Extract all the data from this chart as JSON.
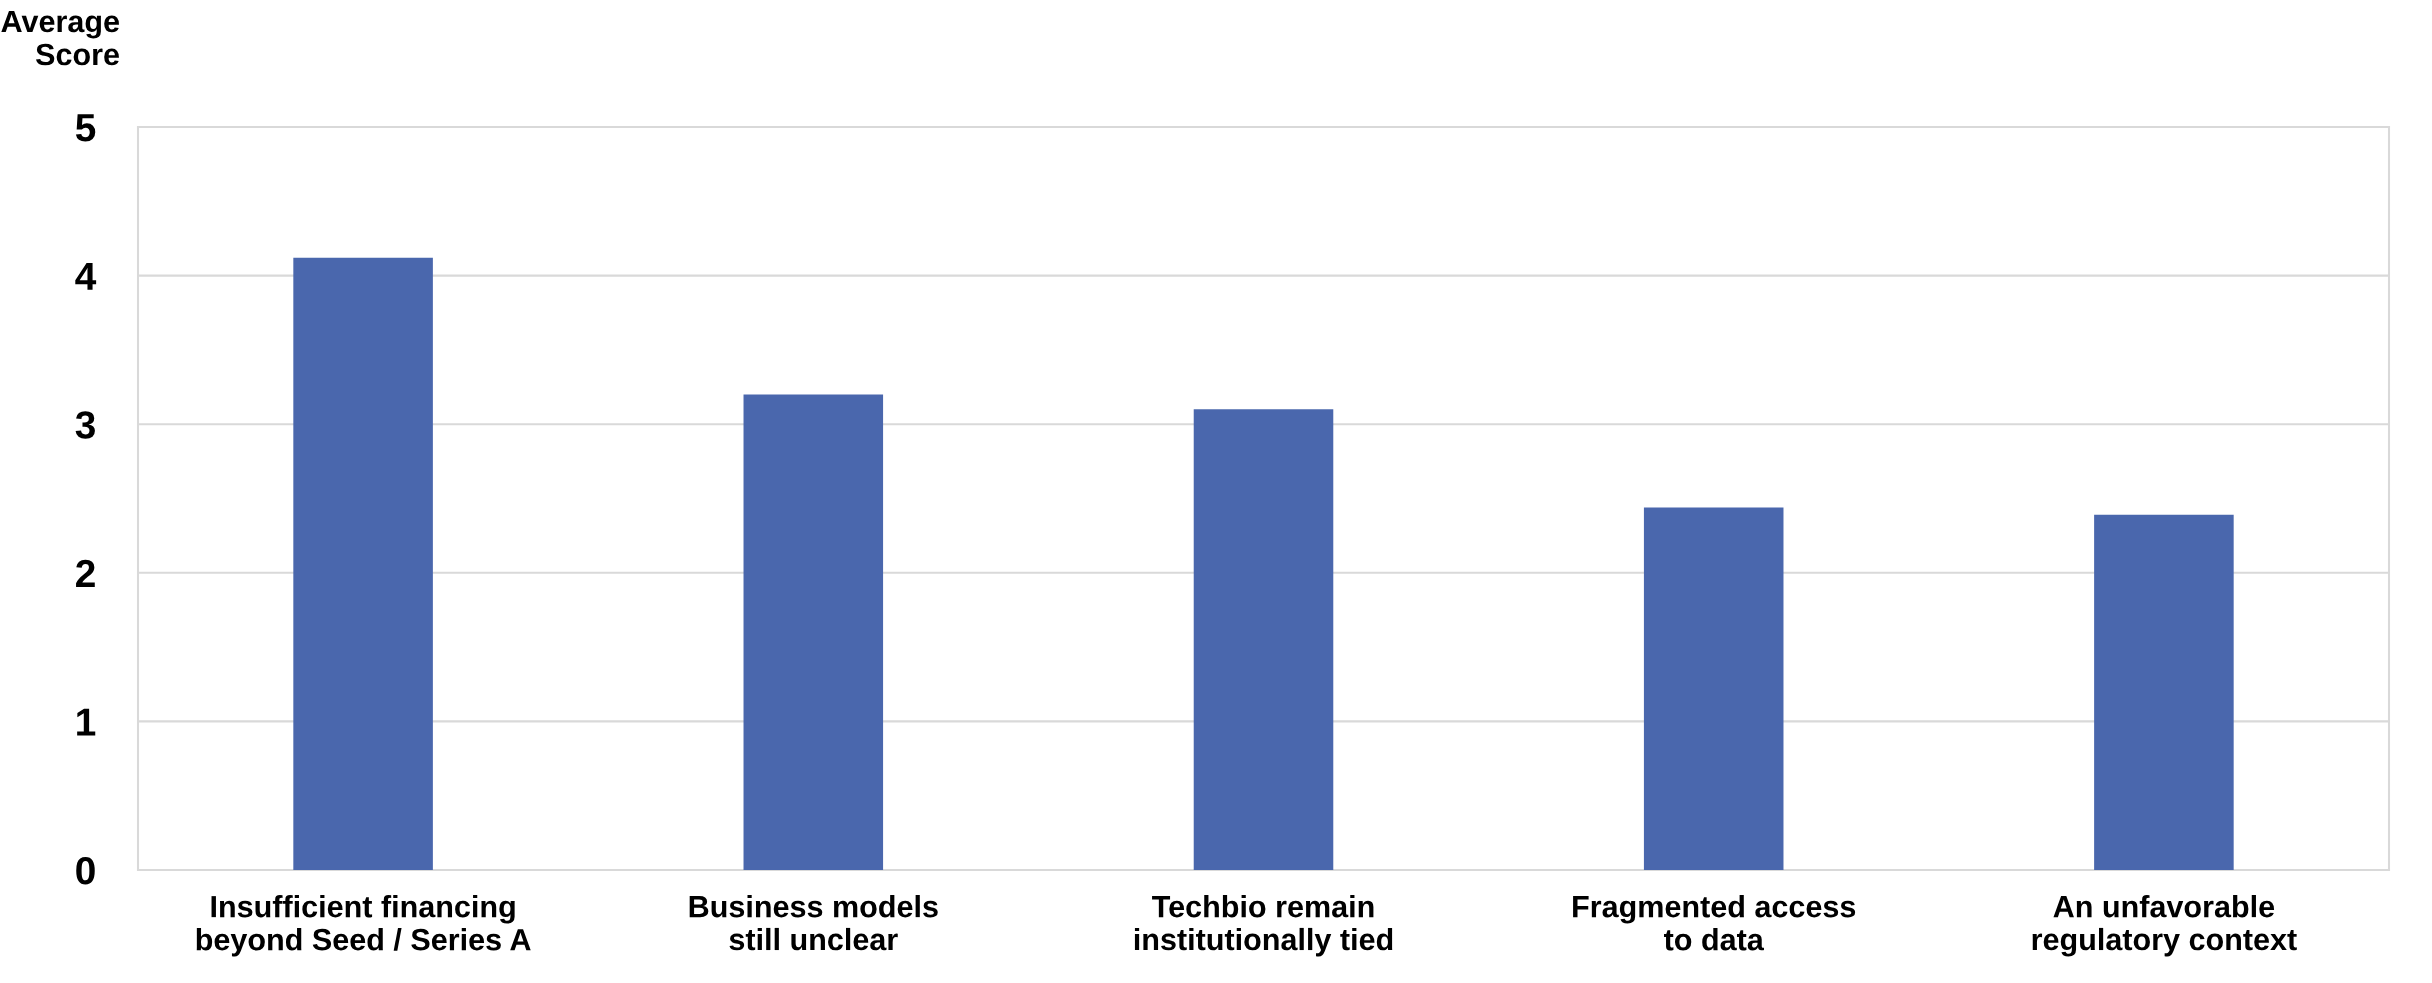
{
  "chart_data": {
    "type": "bar",
    "ylabel": "Average\nScore",
    "categories": [
      "Insufficient financing\nbeyond Seed / Series A",
      "Business models\nstill unclear",
      "Techbio remain\ninstitutionally tied",
      "Fragmented access\nto data",
      "An unfavorable\nregulatory context"
    ],
    "values": [
      4.12,
      3.2,
      3.1,
      2.44,
      2.39
    ],
    "color": "#4a67ad",
    "ylim": [
      0,
      5
    ],
    "yticks": [
      0,
      1,
      2,
      3,
      4,
      5
    ],
    "grid": "y"
  }
}
